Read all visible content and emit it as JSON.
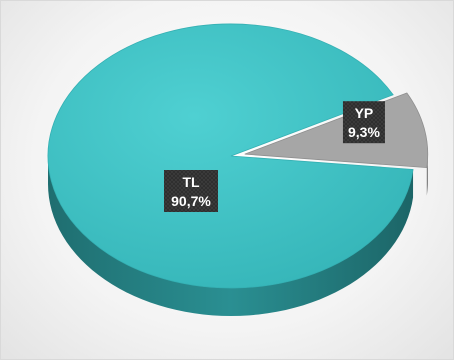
{
  "chart_data": {
    "type": "pie",
    "style": "3d",
    "slices": [
      {
        "label": "TL",
        "value": 90.7,
        "value_label": "90,7%",
        "color": "#3ec1c4"
      },
      {
        "label": "YP",
        "value": 9.3,
        "value_label": "9,3%",
        "color": "#a6a6a6"
      }
    ],
    "background": "#f4f4f4"
  }
}
